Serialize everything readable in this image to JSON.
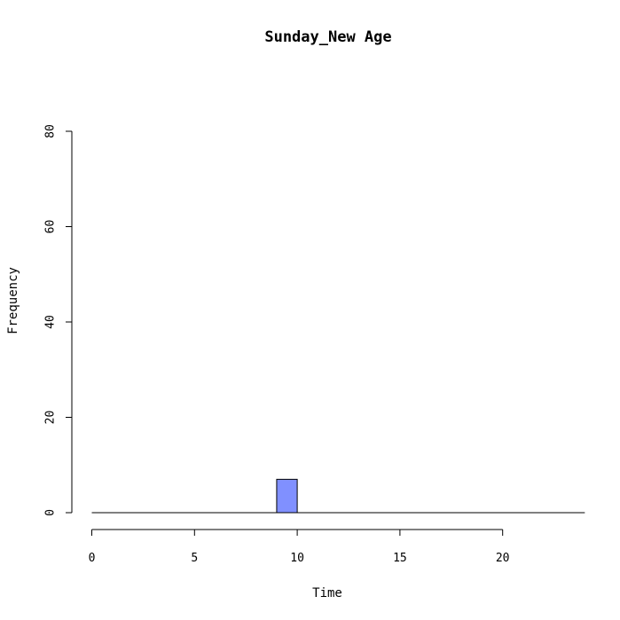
{
  "chart_data": {
    "type": "bar",
    "title": "Sunday_New Age",
    "xlabel": "Time",
    "ylabel": "Frequency",
    "xlim": [
      0,
      24
    ],
    "ylim": [
      0,
      80
    ],
    "x_ticks": [
      0,
      5,
      10,
      15,
      20
    ],
    "y_ticks": [
      0,
      20,
      40,
      60,
      80
    ],
    "bins": [
      {
        "start": 0,
        "end": 1,
        "count": 0
      },
      {
        "start": 1,
        "end": 2,
        "count": 0
      },
      {
        "start": 2,
        "end": 3,
        "count": 0
      },
      {
        "start": 3,
        "end": 4,
        "count": 0
      },
      {
        "start": 4,
        "end": 5,
        "count": 0
      },
      {
        "start": 5,
        "end": 6,
        "count": 0
      },
      {
        "start": 6,
        "end": 7,
        "count": 0
      },
      {
        "start": 7,
        "end": 8,
        "count": 0
      },
      {
        "start": 8,
        "end": 9,
        "count": 0
      },
      {
        "start": 9,
        "end": 10,
        "count": 7
      },
      {
        "start": 10,
        "end": 11,
        "count": 0
      },
      {
        "start": 11,
        "end": 12,
        "count": 0
      },
      {
        "start": 12,
        "end": 13,
        "count": 0
      },
      {
        "start": 13,
        "end": 14,
        "count": 0
      },
      {
        "start": 14,
        "end": 15,
        "count": 0
      },
      {
        "start": 15,
        "end": 16,
        "count": 0
      },
      {
        "start": 16,
        "end": 17,
        "count": 0
      },
      {
        "start": 17,
        "end": 18,
        "count": 0
      },
      {
        "start": 18,
        "end": 19,
        "count": 0
      },
      {
        "start": 19,
        "end": 20,
        "count": 0
      },
      {
        "start": 20,
        "end": 21,
        "count": 0
      },
      {
        "start": 21,
        "end": 22,
        "count": 0
      },
      {
        "start": 22,
        "end": 23,
        "count": 0
      },
      {
        "start": 23,
        "end": 24,
        "count": 0
      }
    ],
    "bar_color": "#8090ff",
    "grid": false,
    "legend": "none"
  }
}
